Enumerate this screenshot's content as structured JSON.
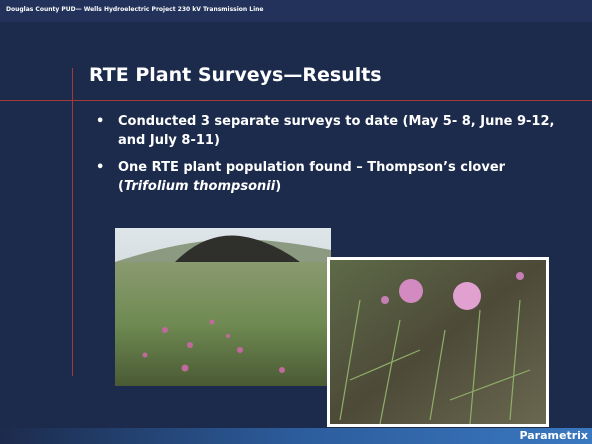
{
  "header": {
    "project": "Douglas County PUD— Wells Hydroelectric Project 230 kV Transmission Line"
  },
  "slide": {
    "title": "RTE Plant Surveys—Results",
    "bullets": [
      {
        "text": "Conducted 3 separate surveys to date (May 5- 8, June 9-12, and July 8-11)"
      },
      {
        "text": "One RTE plant population found – Thompson’s clover (",
        "italic": "Trifolium thompsonii",
        "after": ")"
      }
    ]
  },
  "footer": {
    "brand": "Parametrix"
  }
}
